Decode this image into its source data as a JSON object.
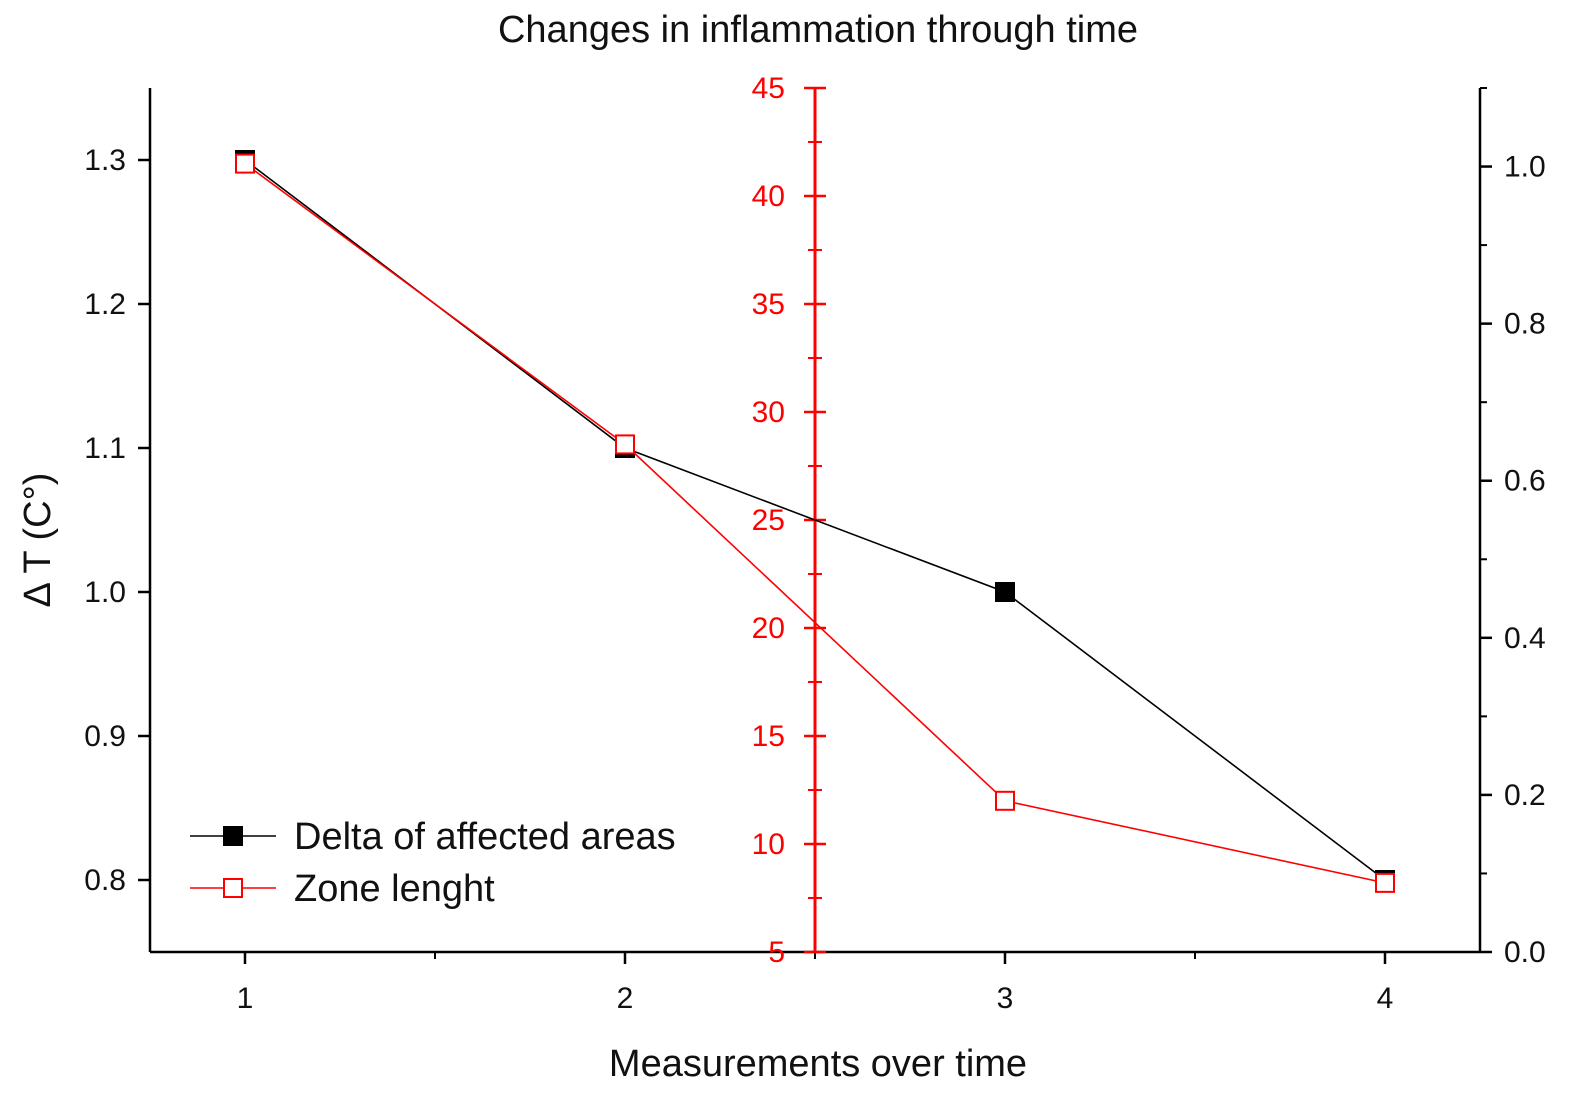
{
  "chart_data": {
    "type": "line",
    "title": "Changes in inflammation through time",
    "xlabel": "Measurements over time",
    "ylabel": "Δ T (C°)",
    "x": [
      1,
      2,
      3,
      4
    ],
    "xlim": [
      0.75,
      4.25
    ],
    "x_ticks": [
      "1",
      "2",
      "3",
      "4"
    ],
    "y_left": {
      "ylim": [
        0.75,
        1.35
      ],
      "ticks": [
        "0.8",
        "0.9",
        "1.0",
        "1.1",
        "1.2",
        "1.3"
      ],
      "color": "#000000"
    },
    "y_middle": {
      "ylim": [
        5,
        45
      ],
      "ticks": [
        "5",
        "10",
        "15",
        "20",
        "25",
        "30",
        "35",
        "40",
        "45"
      ],
      "color": "#ff0000",
      "x_position": 2.5
    },
    "y_right": {
      "ylim": [
        0.0,
        1.1
      ],
      "ticks": [
        "0.0",
        "0.2",
        "0.4",
        "0.6",
        "0.8",
        "1.0"
      ],
      "color": "#000000"
    },
    "series": [
      {
        "name": "Delta of affected areas",
        "axis": "left",
        "values": [
          1.3,
          1.1,
          1.0,
          0.8
        ],
        "color": "#000000",
        "marker": "filled-square"
      },
      {
        "name": "Zone lenght",
        "axis": "middle",
        "values": [
          41.5,
          28.5,
          12.0,
          8.2
        ],
        "color": "#ff0000",
        "marker": "open-square"
      }
    ],
    "legend_position": "bottom-left"
  }
}
